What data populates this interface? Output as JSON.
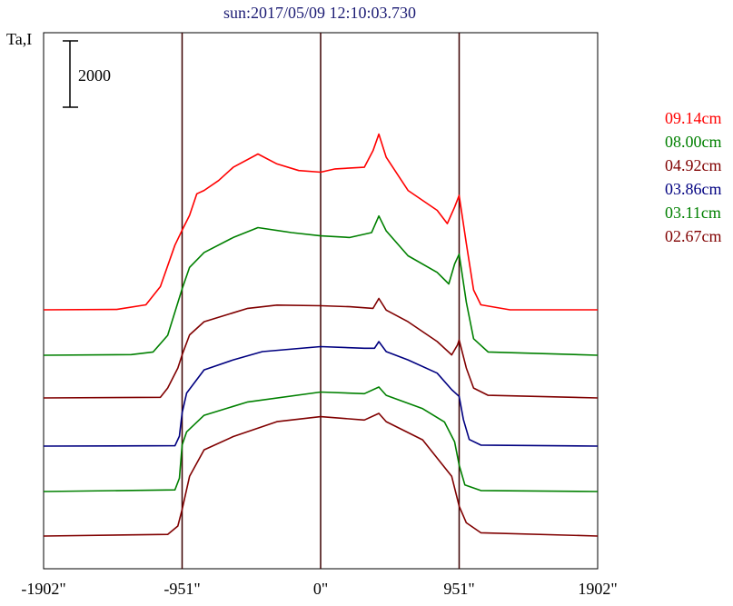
{
  "chart_data": {
    "type": "line",
    "title": "sun:2017/05/09 12:10:03.730",
    "ylabel": "Ta,I",
    "scale_bar_label": "2000",
    "x_tick_labels": [
      "-1902\"",
      "-951\"",
      "0\"",
      "951\"",
      "1902\""
    ],
    "x_ticks": [
      -1902,
      -951,
      0,
      951,
      1902
    ],
    "xlim": [
      -1902,
      1902
    ],
    "reference_lines_x": [
      -951,
      0,
      951
    ],
    "grid": false,
    "legend_position": "right",
    "series": [
      {
        "name": "09.14cm",
        "color": "#ff0000",
        "points": [
          [
            -1902,
            0
          ],
          [
            -1400,
            10
          ],
          [
            -1200,
            150
          ],
          [
            -1100,
            700
          ],
          [
            -1000,
            1950
          ],
          [
            -951,
            2400
          ],
          [
            -900,
            2850
          ],
          [
            -850,
            3500
          ],
          [
            -800,
            3600
          ],
          [
            -700,
            3900
          ],
          [
            -600,
            4300
          ],
          [
            -430,
            4700
          ],
          [
            -300,
            4400
          ],
          [
            -150,
            4200
          ],
          [
            0,
            4150
          ],
          [
            100,
            4250
          ],
          [
            300,
            4300
          ],
          [
            360,
            4800
          ],
          [
            400,
            5300
          ],
          [
            450,
            4600
          ],
          [
            600,
            3600
          ],
          [
            800,
            3000
          ],
          [
            870,
            2600
          ],
          [
            920,
            3100
          ],
          [
            951,
            3450
          ],
          [
            1000,
            2000
          ],
          [
            1050,
            600
          ],
          [
            1100,
            150
          ],
          [
            1300,
            0
          ],
          [
            1902,
            0
          ]
        ]
      },
      {
        "name": "08.00cm",
        "color": "#008000",
        "points": [
          [
            -1902,
            0
          ],
          [
            -1300,
            20
          ],
          [
            -1150,
            100
          ],
          [
            -1050,
            600
          ],
          [
            -951,
            2000
          ],
          [
            -900,
            2650
          ],
          [
            -800,
            3100
          ],
          [
            -600,
            3550
          ],
          [
            -430,
            3850
          ],
          [
            -200,
            3700
          ],
          [
            0,
            3600
          ],
          [
            200,
            3550
          ],
          [
            350,
            3700
          ],
          [
            400,
            4200
          ],
          [
            450,
            3750
          ],
          [
            600,
            3000
          ],
          [
            800,
            2500
          ],
          [
            880,
            2150
          ],
          [
            920,
            2750
          ],
          [
            951,
            3050
          ],
          [
            1000,
            1600
          ],
          [
            1050,
            500
          ],
          [
            1150,
            100
          ],
          [
            1902,
            0
          ]
        ]
      },
      {
        "name": "04.92cm",
        "color": "#800000",
        "points": [
          [
            -1902,
            0
          ],
          [
            -1100,
            20
          ],
          [
            -1050,
            300
          ],
          [
            -980,
            900
          ],
          [
            -951,
            1300
          ],
          [
            -900,
            1900
          ],
          [
            -800,
            2300
          ],
          [
            -500,
            2700
          ],
          [
            -300,
            2800
          ],
          [
            0,
            2780
          ],
          [
            200,
            2750
          ],
          [
            360,
            2700
          ],
          [
            400,
            3000
          ],
          [
            450,
            2650
          ],
          [
            600,
            2300
          ],
          [
            800,
            1700
          ],
          [
            900,
            1300
          ],
          [
            940,
            1600
          ],
          [
            951,
            1750
          ],
          [
            1000,
            900
          ],
          [
            1050,
            300
          ],
          [
            1150,
            80
          ],
          [
            1902,
            0
          ]
        ]
      },
      {
        "name": "03.86cm",
        "color": "#000080",
        "points": [
          [
            -1902,
            0
          ],
          [
            -1000,
            10
          ],
          [
            -970,
            300
          ],
          [
            -951,
            1000
          ],
          [
            -920,
            1600
          ],
          [
            -800,
            2300
          ],
          [
            -600,
            2600
          ],
          [
            -400,
            2850
          ],
          [
            0,
            3000
          ],
          [
            300,
            2950
          ],
          [
            370,
            2950
          ],
          [
            400,
            3150
          ],
          [
            450,
            2850
          ],
          [
            600,
            2600
          ],
          [
            800,
            2200
          ],
          [
            900,
            1700
          ],
          [
            951,
            1500
          ],
          [
            980,
            800
          ],
          [
            1020,
            200
          ],
          [
            1100,
            30
          ],
          [
            1902,
            0
          ]
        ]
      },
      {
        "name": "03.11cm",
        "color": "#008000",
        "points": [
          [
            -1902,
            0
          ],
          [
            -1000,
            50
          ],
          [
            -970,
            400
          ],
          [
            -951,
            1400
          ],
          [
            -920,
            1800
          ],
          [
            -800,
            2300
          ],
          [
            -500,
            2700
          ],
          [
            0,
            3000
          ],
          [
            300,
            2950
          ],
          [
            400,
            3150
          ],
          [
            450,
            2900
          ],
          [
            700,
            2500
          ],
          [
            850,
            2100
          ],
          [
            920,
            1500
          ],
          [
            951,
            800
          ],
          [
            990,
            200
          ],
          [
            1100,
            30
          ],
          [
            1902,
            0
          ]
        ]
      },
      {
        "name": "02.67cm",
        "color": "#800000",
        "points": [
          [
            -1902,
            0
          ],
          [
            -1050,
            50
          ],
          [
            -980,
            300
          ],
          [
            -951,
            800
          ],
          [
            -900,
            1800
          ],
          [
            -800,
            2600
          ],
          [
            -600,
            3000
          ],
          [
            -300,
            3450
          ],
          [
            0,
            3600
          ],
          [
            300,
            3500
          ],
          [
            400,
            3700
          ],
          [
            450,
            3450
          ],
          [
            700,
            2900
          ],
          [
            900,
            1800
          ],
          [
            951,
            900
          ],
          [
            1000,
            400
          ],
          [
            1100,
            100
          ],
          [
            1902,
            0
          ]
        ]
      }
    ]
  }
}
